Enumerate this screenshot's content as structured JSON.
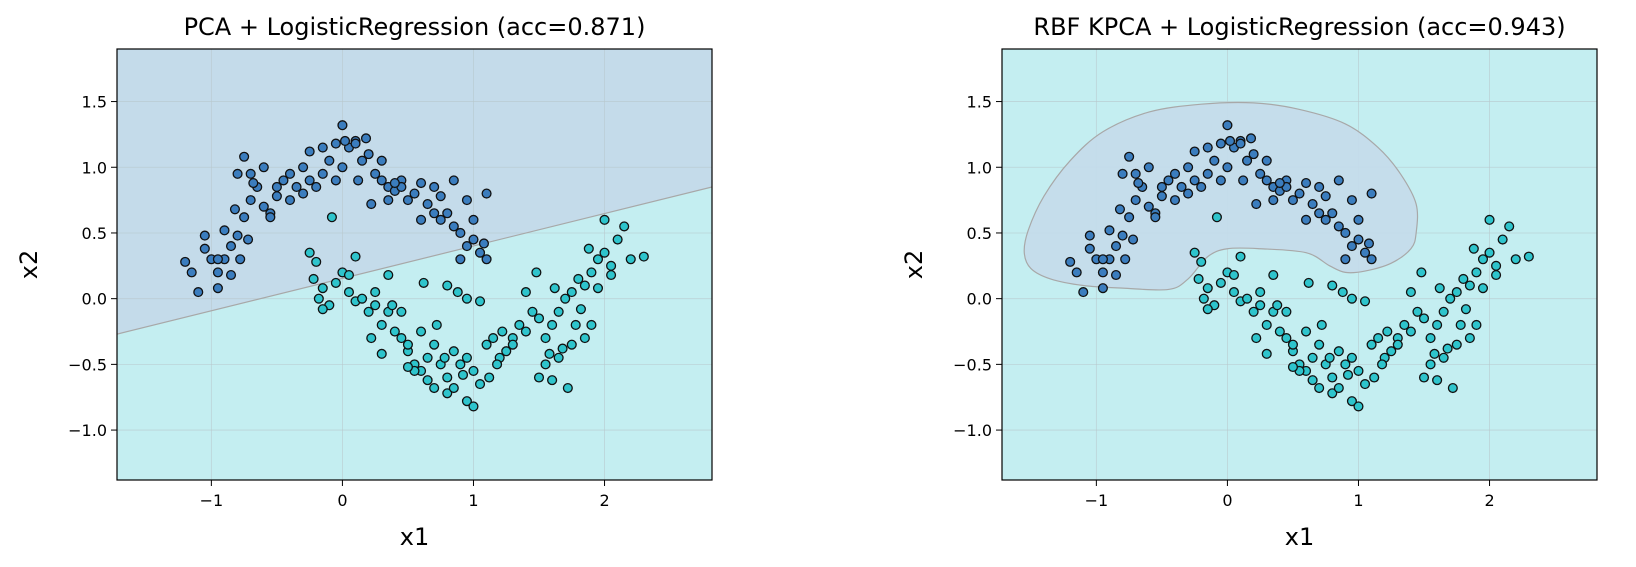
{
  "colors": {
    "class0_point": "#3b7dbe",
    "class1_point": "#2ec4cc",
    "class0_region": "#c4dbea",
    "class1_region": "#c4eef1",
    "boundary": "#a8a8a8",
    "point_edge": "#111111",
    "grid": "#b8c8cc"
  },
  "chart_data": [
    {
      "type": "scatter",
      "title": "PCA + LogisticRegression (acc=0.871)",
      "xlabel": "x1",
      "ylabel": "x2",
      "xlim": [
        -1.72,
        2.82
      ],
      "ylim": [
        -1.38,
        1.9
      ],
      "xticks": [
        {
          "v": -1,
          "label": "−1"
        },
        {
          "v": 0,
          "label": "0"
        },
        {
          "v": 1,
          "label": "1"
        },
        {
          "v": 2,
          "label": "2"
        }
      ],
      "yticks": [
        {
          "v": -1.0,
          "label": "−1.0"
        },
        {
          "v": -0.5,
          "label": "−0.5"
        },
        {
          "v": 0.0,
          "label": "0.0"
        },
        {
          "v": 0.5,
          "label": "0.5"
        },
        {
          "v": 1.0,
          "label": "1.0"
        },
        {
          "v": 1.5,
          "label": "1.5"
        }
      ],
      "grid": true,
      "decision_boundary": {
        "type": "linear",
        "points": [
          [
            -1.72,
            -0.27
          ],
          [
            2.82,
            0.85
          ]
        ]
      },
      "regions": [
        {
          "class": 0,
          "location": "above boundary"
        },
        {
          "class": 1,
          "location": "below boundary"
        }
      ]
    },
    {
      "type": "scatter",
      "title": "RBF KPCA + LogisticRegression (acc=0.943)",
      "xlabel": "x1",
      "ylabel": "x2",
      "xlim": [
        -1.72,
        2.82
      ],
      "ylim": [
        -1.38,
        1.9
      ],
      "xticks": [
        {
          "v": -1,
          "label": "−1"
        },
        {
          "v": 0,
          "label": "0"
        },
        {
          "v": 1,
          "label": "1"
        },
        {
          "v": 2,
          "label": "2"
        }
      ],
      "yticks": [
        {
          "v": -1.0,
          "label": "−1.0"
        },
        {
          "v": -0.5,
          "label": "−0.5"
        },
        {
          "v": 0.0,
          "label": "0.0"
        },
        {
          "v": 0.5,
          "label": "0.5"
        },
        {
          "v": 1.0,
          "label": "1.0"
        },
        {
          "v": 1.5,
          "label": "1.5"
        }
      ],
      "grid": true,
      "decision_boundary": {
        "type": "closed",
        "points": [
          [
            -1.55,
            0.35
          ],
          [
            -1.52,
            0.52
          ],
          [
            -1.4,
            0.78
          ],
          [
            -1.2,
            1.05
          ],
          [
            -0.95,
            1.27
          ],
          [
            -0.6,
            1.42
          ],
          [
            -0.2,
            1.48
          ],
          [
            0.2,
            1.49
          ],
          [
            0.55,
            1.44
          ],
          [
            0.9,
            1.33
          ],
          [
            1.15,
            1.15
          ],
          [
            1.32,
            0.95
          ],
          [
            1.44,
            0.72
          ],
          [
            1.44,
            0.5
          ],
          [
            1.4,
            0.38
          ],
          [
            1.25,
            0.27
          ],
          [
            1.05,
            0.21
          ],
          [
            0.9,
            0.2
          ],
          [
            0.78,
            0.25
          ],
          [
            0.6,
            0.35
          ],
          [
            0.25,
            0.38
          ],
          [
            0.0,
            0.38
          ],
          [
            -0.15,
            0.32
          ],
          [
            -0.3,
            0.15
          ],
          [
            -0.45,
            0.07
          ],
          [
            -0.8,
            0.08
          ],
          [
            -1.1,
            0.1
          ],
          [
            -1.35,
            0.15
          ],
          [
            -1.5,
            0.23
          ]
        ]
      },
      "regions": [
        {
          "class": 0,
          "location": "inside boundary"
        },
        {
          "class": 1,
          "location": "outside boundary"
        }
      ]
    }
  ],
  "points": {
    "class0": [
      [
        -1.05,
        0.38
      ],
      [
        -1.0,
        0.3
      ],
      [
        -0.95,
        0.2
      ],
      [
        -0.9,
        0.3
      ],
      [
        -0.85,
        0.4
      ],
      [
        -0.8,
        0.48
      ],
      [
        -0.78,
        0.3
      ],
      [
        -0.82,
        0.68
      ],
      [
        -0.75,
        0.62
      ],
      [
        -0.7,
        0.75
      ],
      [
        -0.65,
        0.85
      ],
      [
        -0.6,
        0.7
      ],
      [
        -0.55,
        0.65
      ],
      [
        -0.5,
        0.78
      ],
      [
        -0.45,
        0.9
      ],
      [
        -0.4,
        0.95
      ],
      [
        -0.35,
        0.85
      ],
      [
        -0.3,
        0.8
      ],
      [
        -0.25,
        0.9
      ],
      [
        -0.2,
        0.85
      ],
      [
        -0.15,
        0.95
      ],
      [
        -0.1,
        1.05
      ],
      [
        -0.05,
        0.9
      ],
      [
        0.0,
        1.0
      ],
      [
        0.05,
        1.15
      ],
      [
        0.1,
        1.2
      ],
      [
        0.15,
        1.05
      ],
      [
        0.2,
        1.1
      ],
      [
        0.25,
        0.95
      ],
      [
        0.3,
        0.9
      ],
      [
        0.35,
        0.85
      ],
      [
        0.4,
        0.82
      ],
      [
        0.45,
        0.9
      ],
      [
        0.5,
        0.75
      ],
      [
        0.55,
        0.8
      ],
      [
        0.6,
        0.88
      ],
      [
        0.65,
        0.72
      ],
      [
        0.7,
        0.85
      ],
      [
        0.75,
        0.78
      ],
      [
        0.8,
        0.65
      ],
      [
        0.85,
        0.55
      ],
      [
        0.9,
        0.5
      ],
      [
        0.95,
        0.4
      ],
      [
        1.0,
        0.45
      ],
      [
        1.05,
        0.35
      ],
      [
        1.1,
        0.3
      ],
      [
        -0.8,
        0.95
      ],
      [
        -0.7,
        0.95
      ],
      [
        -0.6,
        1.0
      ],
      [
        -0.5,
        0.85
      ],
      [
        -0.3,
        1.0
      ],
      [
        -0.25,
        1.12
      ],
      [
        -0.15,
        1.15
      ],
      [
        0.0,
        1.32
      ],
      [
        0.1,
        1.18
      ],
      [
        0.18,
        1.22
      ],
      [
        -0.4,
        0.75
      ],
      [
        -0.9,
        0.52
      ],
      [
        -1.05,
        0.48
      ],
      [
        -1.15,
        0.2
      ],
      [
        -1.2,
        0.28
      ],
      [
        -0.95,
        0.08
      ],
      [
        -0.85,
        0.18
      ],
      [
        -0.75,
        1.08
      ],
      [
        -0.68,
        0.88
      ],
      [
        0.3,
        1.05
      ],
      [
        0.45,
        0.85
      ],
      [
        0.7,
        0.65
      ],
      [
        0.85,
        0.9
      ],
      [
        0.95,
        0.75
      ],
      [
        1.0,
        0.6
      ],
      [
        1.1,
        0.8
      ],
      [
        0.6,
        0.6
      ],
      [
        0.9,
        0.3
      ],
      [
        -0.95,
        0.3
      ],
      [
        -0.72,
        0.45
      ],
      [
        -0.55,
        0.62
      ],
      [
        0.22,
        0.72
      ],
      [
        0.4,
        0.88
      ],
      [
        0.75,
        0.6
      ],
      [
        1.08,
        0.42
      ],
      [
        -1.1,
        0.05
      ],
      [
        0.02,
        1.2
      ],
      [
        0.35,
        0.75
      ],
      [
        0.12,
        0.9
      ],
      [
        -0.05,
        1.18
      ]
    ],
    "class1": [
      [
        -0.25,
        0.35
      ],
      [
        -0.2,
        0.28
      ],
      [
        -0.22,
        0.15
      ],
      [
        -0.15,
        0.08
      ],
      [
        -0.1,
        -0.05
      ],
      [
        -0.05,
        0.12
      ],
      [
        0.0,
        0.2
      ],
      [
        0.05,
        0.05
      ],
      [
        0.1,
        -0.02
      ],
      [
        0.15,
        0.0
      ],
      [
        0.2,
        -0.1
      ],
      [
        0.25,
        -0.05
      ],
      [
        0.3,
        -0.2
      ],
      [
        0.35,
        -0.1
      ],
      [
        0.4,
        -0.25
      ],
      [
        0.45,
        -0.3
      ],
      [
        0.5,
        -0.4
      ],
      [
        0.55,
        -0.5
      ],
      [
        0.6,
        -0.55
      ],
      [
        0.65,
        -0.45
      ],
      [
        0.7,
        -0.35
      ],
      [
        0.75,
        -0.5
      ],
      [
        0.8,
        -0.6
      ],
      [
        0.85,
        -0.4
      ],
      [
        0.9,
        -0.5
      ],
      [
        0.95,
        -0.45
      ],
      [
        1.0,
        -0.55
      ],
      [
        1.05,
        -0.65
      ],
      [
        1.1,
        -0.35
      ],
      [
        1.15,
        -0.3
      ],
      [
        1.2,
        -0.45
      ],
      [
        1.25,
        -0.4
      ],
      [
        1.3,
        -0.3
      ],
      [
        1.35,
        -0.2
      ],
      [
        1.4,
        -0.25
      ],
      [
        1.45,
        -0.1
      ],
      [
        1.5,
        -0.15
      ],
      [
        1.55,
        -0.3
      ],
      [
        1.6,
        -0.2
      ],
      [
        1.65,
        -0.1
      ],
      [
        1.7,
        0.0
      ],
      [
        1.75,
        0.05
      ],
      [
        1.8,
        0.15
      ],
      [
        1.85,
        0.1
      ],
      [
        1.9,
        0.2
      ],
      [
        1.95,
        0.3
      ],
      [
        2.0,
        0.35
      ],
      [
        2.05,
        0.25
      ],
      [
        2.1,
        0.45
      ],
      [
        2.0,
        0.6
      ],
      [
        2.15,
        0.55
      ],
      [
        2.3,
        0.32
      ],
      [
        2.2,
        0.3
      ],
      [
        1.95,
        0.08
      ],
      [
        1.9,
        -0.2
      ],
      [
        1.85,
        -0.3
      ],
      [
        1.75,
        -0.35
      ],
      [
        1.65,
        -0.45
      ],
      [
        1.55,
        -0.5
      ],
      [
        1.5,
        -0.6
      ],
      [
        1.6,
        -0.62
      ],
      [
        1.72,
        -0.68
      ],
      [
        0.8,
        -0.72
      ],
      [
        0.85,
        -0.68
      ],
      [
        0.95,
        -0.78
      ],
      [
        1.0,
        -0.82
      ],
      [
        0.55,
        -0.55
      ],
      [
        0.5,
        -0.52
      ],
      [
        0.65,
        -0.62
      ],
      [
        0.3,
        -0.42
      ],
      [
        0.22,
        -0.3
      ],
      [
        -0.15,
        -0.08
      ],
      [
        0.45,
        -0.1
      ],
      [
        0.38,
        -0.05
      ],
      [
        0.6,
        -0.25
      ],
      [
        0.72,
        -0.2
      ],
      [
        0.88,
        0.05
      ],
      [
        0.95,
        0.0
      ],
      [
        1.05,
        -0.02
      ],
      [
        0.8,
        0.1
      ],
      [
        1.48,
        0.2
      ],
      [
        1.4,
        0.05
      ],
      [
        1.62,
        0.08
      ],
      [
        1.3,
        -0.35
      ],
      [
        1.18,
        -0.5
      ],
      [
        1.12,
        -0.6
      ],
      [
        0.92,
        -0.58
      ],
      [
        0.78,
        -0.45
      ],
      [
        1.68,
        -0.38
      ],
      [
        1.78,
        -0.2
      ],
      [
        1.82,
        -0.08
      ],
      [
        2.05,
        0.18
      ],
      [
        -0.08,
        0.62
      ],
      [
        0.1,
        0.32
      ],
      [
        0.35,
        0.18
      ],
      [
        0.25,
        0.05
      ],
      [
        0.5,
        -0.35
      ],
      [
        0.7,
        -0.68
      ],
      [
        1.22,
        -0.25
      ],
      [
        1.58,
        -0.42
      ],
      [
        1.88,
        0.38
      ],
      [
        -0.18,
        0.0
      ],
      [
        0.62,
        0.12
      ],
      [
        0.05,
        0.18
      ]
    ]
  }
}
